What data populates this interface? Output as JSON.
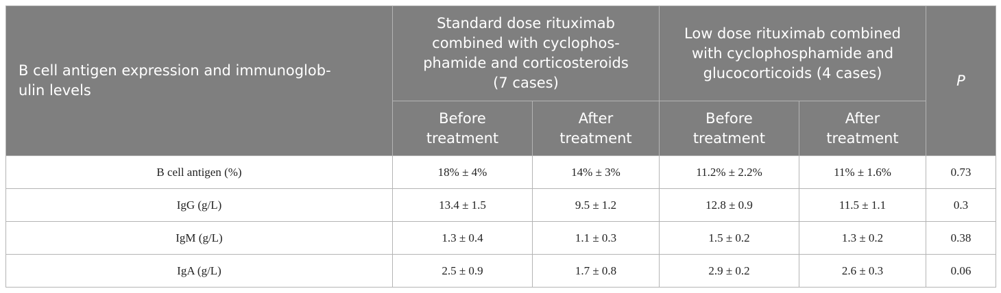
{
  "table": {
    "header": {
      "row_label": "B cell antigen expression and immunoglob-\nulin levels",
      "groups": [
        "Standard dose rituximab\ncombined with cyclophos-\nphamide and corticosteroids\n(7 cases)",
        "Low dose rituximab combined\nwith cyclophosphamide and\nglucocorticoids (4 cases)"
      ],
      "p": "P",
      "subheaders": [
        "Before\ntreatment",
        "After\ntreatment",
        "Before\ntreatment",
        "After\ntreatment"
      ]
    },
    "rows": [
      [
        "B cell antigen (%)",
        "18% ± 4%",
        "14% ± 3%",
        "11.2% ± 2.2%",
        "11% ± 1.6%",
        "0.73"
      ],
      [
        "IgG (g/L)",
        "13.4 ± 1.5",
        "9.5 ± 1.2",
        "12.8 ± 0.9",
        "11.5 ± 1.1",
        "0.3"
      ],
      [
        "IgM (g/L)",
        "1.3 ± 0.4",
        "1.1 ± 0.3",
        "1.5 ± 0.2",
        "1.3 ± 0.2",
        "0.38"
      ],
      [
        "IgA (g/L)",
        "2.5 ± 0.9",
        "1.7 ± 0.8",
        "2.9 ± 0.2",
        "2.6 ± 0.3",
        "0.06"
      ]
    ]
  }
}
